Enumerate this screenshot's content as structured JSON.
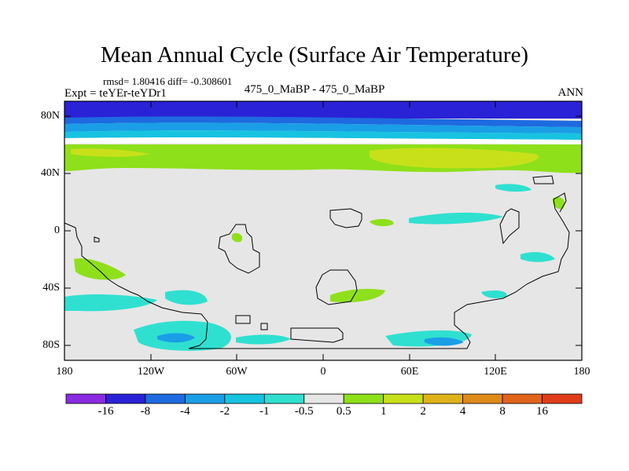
{
  "title": "Mean Annual Cycle (Surface Air Temperature)",
  "stats_line": "rmsd= 1.80416 diff= -0.308601",
  "experiment": "Expt = teYEr-teYDr1",
  "subtitle": "475_0_MaBP - 475_0_MaBP",
  "season": "ANN",
  "lat_ticks": [
    "80N",
    "40N",
    "0",
    "40S",
    "80S"
  ],
  "lon_ticks": [
    "180",
    "120W",
    "60W",
    "0",
    "60E",
    "120E",
    "180"
  ],
  "colorbar": {
    "labels": [
      "-16",
      "-8",
      "-4",
      "-2",
      "-1",
      "-0.5",
      "0.5",
      "1",
      "2",
      "4",
      "8",
      "16"
    ],
    "colors": [
      "#8a2be2",
      "#2a22d6",
      "#1e6ae0",
      "#1a9ee6",
      "#17c3e0",
      "#2fe0d0",
      "#e6e6e6",
      "#8ee01a",
      "#c8e01a",
      "#e0b21a",
      "#e08a1a",
      "#e0641a",
      "#e03c1a"
    ]
  },
  "chart_data": {
    "type": "heatmap",
    "title": "Mean Annual Cycle (Surface Air Temperature)",
    "xlabel": "",
    "ylabel": "",
    "xlim": [
      -180,
      180
    ],
    "ylim": [
      -90,
      90
    ],
    "levels": [
      -16,
      -8,
      -4,
      -2,
      -1,
      -0.5,
      0.5,
      1,
      2,
      4,
      8,
      16
    ],
    "zonal_bands": [
      {
        "lat_range": [
          78,
          90
        ],
        "class": "<-16"
      },
      {
        "lat_range": [
          72,
          78
        ],
        "class": "-16 to -8"
      },
      {
        "lat_range": [
          67,
          72
        ],
        "class": "-8 to -4"
      },
      {
        "lat_range": [
          62,
          67
        ],
        "class": "-4 to -1"
      },
      {
        "lat_range": [
          45,
          60
        ],
        "class": "0.5 to 2"
      },
      {
        "lat_range": [
          -90,
          45
        ],
        "class": "-0.5 to 0.5 (background)"
      }
    ]
  }
}
